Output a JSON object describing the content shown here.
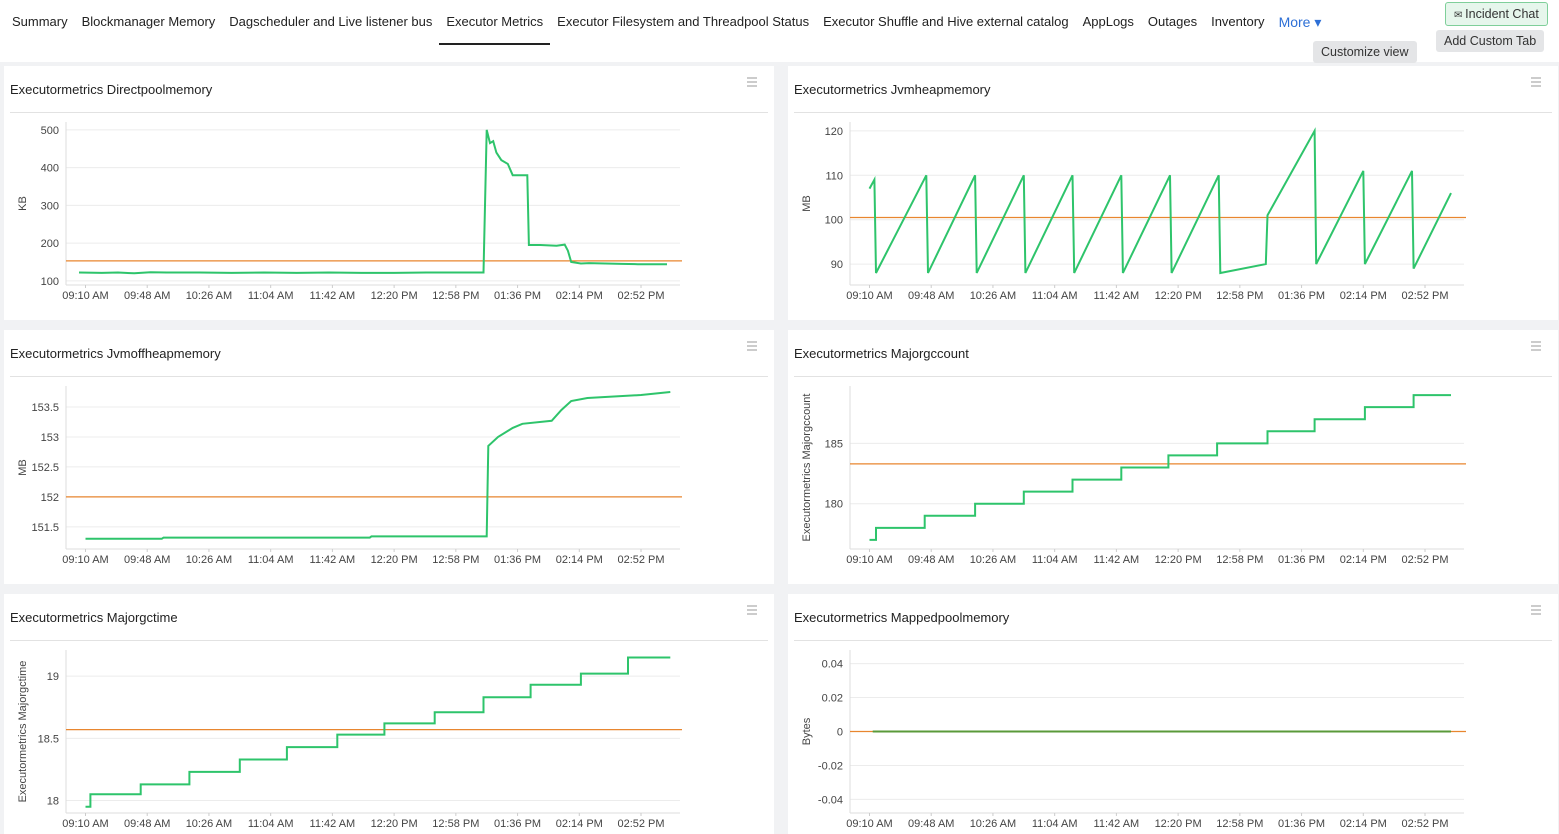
{
  "nav": {
    "tabs": [
      "Summary",
      "Blockmanager Memory",
      "Dagscheduler and Live listener bus",
      "Executor Metrics",
      "Executor Filesystem and Threadpool Status",
      "Executor Shuffle and Hive external catalog",
      "AppLogs",
      "Outages",
      "Inventory"
    ],
    "active_tab": 3,
    "more": "More",
    "incident_chat": "Incident Chat",
    "customize_view": "Customize view",
    "add_custom_tab": "Add Custom Tab"
  },
  "chart_data": [
    {
      "type": "line",
      "title": "Executormetrics Directpoolmemory",
      "y_label": "KB",
      "x": [
        546,
        560,
        570,
        580,
        590,
        600,
        620,
        640,
        660,
        680,
        700,
        720,
        740,
        760,
        780,
        795,
        797,
        799,
        801,
        803,
        806,
        810,
        813,
        820,
        822,
        823,
        830,
        840,
        845,
        847,
        849,
        855,
        860,
        870,
        880,
        890,
        908
      ],
      "series": [
        {
          "color": "#2ec46b",
          "values": [
            122,
            121,
            122,
            120,
            123,
            122,
            122,
            121,
            122,
            121,
            122,
            121,
            121,
            122,
            122,
            122,
            500,
            465,
            470,
            440,
            420,
            410,
            380,
            380,
            380,
            195,
            195,
            193,
            196,
            180,
            150,
            146,
            147,
            146,
            145,
            144,
            144
          ]
        }
      ],
      "reference_line": {
        "value": 153,
        "color": "#e8862f"
      },
      "xlim": [
        538,
        916
      ],
      "ylim": [
        89,
        521
      ],
      "yticks": [
        100,
        200,
        300,
        400,
        500
      ],
      "grid": true,
      "xticks": [
        {
          "value": 550,
          "label": "09:10 AM"
        },
        {
          "value": 588,
          "label": "09:48 AM"
        },
        {
          "value": 626,
          "label": "10:26 AM"
        },
        {
          "value": 664,
          "label": "11:04 AM"
        },
        {
          "value": 702,
          "label": "11:42 AM"
        },
        {
          "value": 740,
          "label": "12:20 PM"
        },
        {
          "value": 778,
          "label": "12:58 PM"
        },
        {
          "value": 816,
          "label": "01:36 PM"
        },
        {
          "value": 854,
          "label": "02:14 PM"
        },
        {
          "value": 892,
          "label": "02:52 PM"
        }
      ]
    },
    {
      "type": "line",
      "title": "Executormetrics Jvmheapmemory",
      "y_label": "MB",
      "x": [
        550,
        553,
        554,
        585,
        586,
        615,
        616,
        645,
        646,
        675,
        676,
        705,
        706,
        735,
        736,
        765,
        766,
        794,
        795,
        824,
        825,
        854,
        855,
        884,
        885,
        908
      ],
      "series": [
        {
          "color": "#2ec46b",
          "values": [
            107,
            109,
            88,
            110,
            88,
            110,
            88,
            110,
            88,
            110,
            88,
            110,
            88,
            110,
            88,
            110,
            88,
            90,
            101,
            120,
            90,
            111,
            90,
            111,
            89,
            106
          ]
        }
      ],
      "reference_line": {
        "value": 100.5,
        "color": "#e8862f"
      },
      "xlim": [
        538,
        916
      ],
      "ylim": [
        85.3,
        122
      ],
      "yticks": [
        90,
        100,
        110,
        120
      ],
      "grid": true,
      "xticks": [
        {
          "value": 550,
          "label": "09:10 AM"
        },
        {
          "value": 588,
          "label": "09:48 AM"
        },
        {
          "value": 626,
          "label": "10:26 AM"
        },
        {
          "value": 664,
          "label": "11:04 AM"
        },
        {
          "value": 702,
          "label": "11:42 AM"
        },
        {
          "value": 740,
          "label": "12:20 PM"
        },
        {
          "value": 778,
          "label": "12:58 PM"
        },
        {
          "value": 816,
          "label": "01:36 PM"
        },
        {
          "value": 854,
          "label": "02:14 PM"
        },
        {
          "value": 892,
          "label": "02:52 PM"
        }
      ]
    },
    {
      "type": "line",
      "title": "Executormetrics Jvmoffheapmemory",
      "y_label": "MB",
      "x": [
        550,
        597,
        598,
        725,
        726,
        797,
        798,
        804,
        813,
        819,
        837,
        843,
        849,
        859,
        892,
        910
      ],
      "series": [
        {
          "color": "#2ec46b",
          "values": [
            151.3,
            151.3,
            151.32,
            151.32,
            151.34,
            151.34,
            152.85,
            153.0,
            153.15,
            153.22,
            153.27,
            153.45,
            153.6,
            153.65,
            153.7,
            153.75
          ]
        }
      ],
      "reference_line": {
        "value": 152,
        "color": "#e8862f"
      },
      "xlim": [
        538,
        916
      ],
      "ylim": [
        151.13,
        153.85
      ],
      "yticks": [
        151.5,
        152,
        152.5,
        153,
        153.5
      ],
      "grid": true,
      "xticks": [
        {
          "value": 550,
          "label": "09:10 AM"
        },
        {
          "value": 588,
          "label": "09:48 AM"
        },
        {
          "value": 626,
          "label": "10:26 AM"
        },
        {
          "value": 664,
          "label": "11:04 AM"
        },
        {
          "value": 702,
          "label": "11:42 AM"
        },
        {
          "value": 740,
          "label": "12:20 PM"
        },
        {
          "value": 778,
          "label": "12:58 PM"
        },
        {
          "value": 816,
          "label": "01:36 PM"
        },
        {
          "value": 854,
          "label": "02:14 PM"
        },
        {
          "value": 892,
          "label": "02:52 PM"
        }
      ]
    },
    {
      "type": "line",
      "title": "Executormetrics Majorgccount",
      "y_label": "Executormetrics Majorgccount",
      "x": [
        550,
        554,
        554,
        584,
        584,
        615,
        615,
        645,
        645,
        675,
        675,
        705,
        705,
        734,
        734,
        764,
        764,
        795,
        795,
        824,
        824,
        855,
        855,
        885,
        885,
        908
      ],
      "series": [
        {
          "color": "#2ec46b",
          "values": [
            177,
            177,
            178,
            178,
            179,
            179,
            180,
            180,
            181,
            181,
            182,
            182,
            183,
            183,
            184,
            184,
            185,
            185,
            186,
            186,
            187,
            187,
            188,
            188,
            189,
            189
          ]
        }
      ],
      "reference_line": {
        "value": 183.3,
        "color": "#e8862f"
      },
      "xlim": [
        538,
        916
      ],
      "ylim": [
        176.25,
        189.75
      ],
      "yticks": [
        180,
        185
      ],
      "grid": true,
      "xticks": [
        {
          "value": 550,
          "label": "09:10 AM"
        },
        {
          "value": 588,
          "label": "09:48 AM"
        },
        {
          "value": 626,
          "label": "10:26 AM"
        },
        {
          "value": 664,
          "label": "11:04 AM"
        },
        {
          "value": 702,
          "label": "11:42 AM"
        },
        {
          "value": 740,
          "label": "12:20 PM"
        },
        {
          "value": 778,
          "label": "12:58 PM"
        },
        {
          "value": 816,
          "label": "01:36 PM"
        },
        {
          "value": 854,
          "label": "02:14 PM"
        },
        {
          "value": 892,
          "label": "02:52 PM"
        }
      ]
    },
    {
      "type": "line",
      "title": "Executormetrics Majorgctime",
      "y_label": "Executormetrics Majorgctime",
      "x": [
        550,
        553,
        553,
        584,
        584,
        614,
        614,
        645,
        645,
        674,
        674,
        705,
        705,
        734,
        734,
        765,
        765,
        795,
        795,
        824,
        824,
        855,
        855,
        884,
        884,
        910
      ],
      "series": [
        {
          "color": "#2ec46b",
          "values": [
            17.95,
            17.95,
            18.05,
            18.05,
            18.13,
            18.13,
            18.23,
            18.23,
            18.33,
            18.33,
            18.43,
            18.43,
            18.53,
            18.53,
            18.62,
            18.62,
            18.71,
            18.71,
            18.83,
            18.83,
            18.93,
            18.93,
            19.02,
            19.02,
            19.15,
            19.15
          ]
        }
      ],
      "reference_line": {
        "value": 18.57,
        "color": "#e8862f"
      },
      "xlim": [
        538,
        916
      ],
      "ylim": [
        17.9,
        19.21
      ],
      "yticks": [
        18,
        18.5,
        19
      ],
      "grid": true,
      "xticks": [
        {
          "value": 550,
          "label": "09:10 AM"
        },
        {
          "value": 588,
          "label": "09:48 AM"
        },
        {
          "value": 626,
          "label": "10:26 AM"
        },
        {
          "value": 664,
          "label": "11:04 AM"
        },
        {
          "value": 702,
          "label": "11:42 AM"
        },
        {
          "value": 740,
          "label": "12:20 PM"
        },
        {
          "value": 778,
          "label": "12:58 PM"
        },
        {
          "value": 816,
          "label": "01:36 PM"
        },
        {
          "value": 854,
          "label": "02:14 PM"
        },
        {
          "value": 892,
          "label": "02:52 PM"
        }
      ]
    },
    {
      "type": "line",
      "title": "Executormetrics Mappedpoolmemory",
      "y_label": "Bytes",
      "x": [
        552,
        908
      ],
      "series": [
        {
          "color": "#5a9a3a",
          "values": [
            0,
            0
          ]
        }
      ],
      "reference_line": {
        "value": 0,
        "color": "#e8862f"
      },
      "xlim": [
        538,
        916
      ],
      "ylim": [
        -0.048,
        0.048
      ],
      "yticks": [
        -0.04,
        -0.02,
        0,
        0.02,
        0.04
      ],
      "grid": true,
      "xticks": [
        {
          "value": 550,
          "label": "09:10 AM"
        },
        {
          "value": 588,
          "label": "09:48 AM"
        },
        {
          "value": 626,
          "label": "10:26 AM"
        },
        {
          "value": 664,
          "label": "11:04 AM"
        },
        {
          "value": 702,
          "label": "11:42 AM"
        },
        {
          "value": 740,
          "label": "12:20 PM"
        },
        {
          "value": 778,
          "label": "12:58 PM"
        },
        {
          "value": 816,
          "label": "01:36 PM"
        },
        {
          "value": 854,
          "label": "02:14 PM"
        },
        {
          "value": 892,
          "label": "02:52 PM"
        }
      ]
    }
  ]
}
